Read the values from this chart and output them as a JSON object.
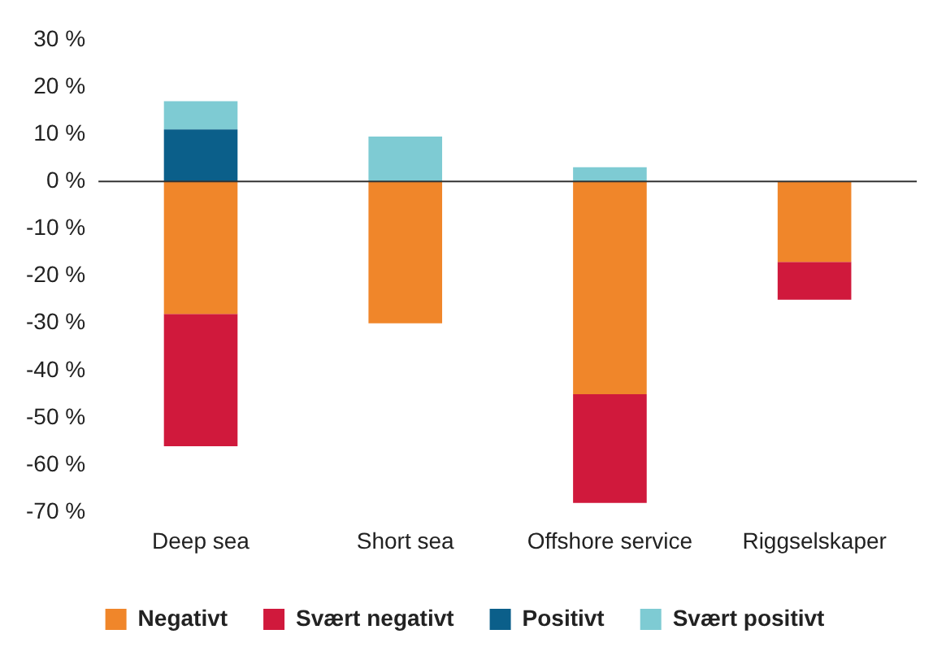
{
  "chart_data": {
    "type": "bar",
    "stacked": true,
    "categories": [
      "Deep sea",
      "Short sea",
      "Offshore service",
      "Riggselskaper"
    ],
    "series": [
      {
        "name": "Negativt",
        "color": "#f0862a",
        "values": [
          -28,
          -30,
          -45,
          -17
        ]
      },
      {
        "name": "Svært negativt",
        "color": "#d0193c",
        "values": [
          -28,
          null,
          -23,
          -8
        ]
      },
      {
        "name": "Positivt",
        "color": "#0b5f8a",
        "values": [
          11,
          null,
          null,
          null
        ]
      },
      {
        "name": "Svært positivt",
        "color": "#7ecbd3",
        "values": [
          6,
          9.5,
          3,
          null
        ]
      }
    ],
    "ylim": [
      -70,
      30
    ],
    "yticks": [
      {
        "value": 30,
        "label": "30 %"
      },
      {
        "value": 20,
        "label": "20 %"
      },
      {
        "value": 10,
        "label": "10 %"
      },
      {
        "value": 0,
        "label": "0 %"
      },
      {
        "value": -10,
        "label": "-10 %"
      },
      {
        "value": -20,
        "label": "-20 %"
      },
      {
        "value": -30,
        "label": "-30 %"
      },
      {
        "value": -40,
        "label": "-40 %"
      },
      {
        "value": -50,
        "label": "-50 %"
      },
      {
        "value": -60,
        "label": "-60 %"
      },
      {
        "value": -70,
        "label": "-70 %"
      }
    ],
    "ref_lines": [
      {
        "axis": "y",
        "value": 0,
        "color": "#333333"
      }
    ],
    "grid": false,
    "legend": "bottom"
  }
}
